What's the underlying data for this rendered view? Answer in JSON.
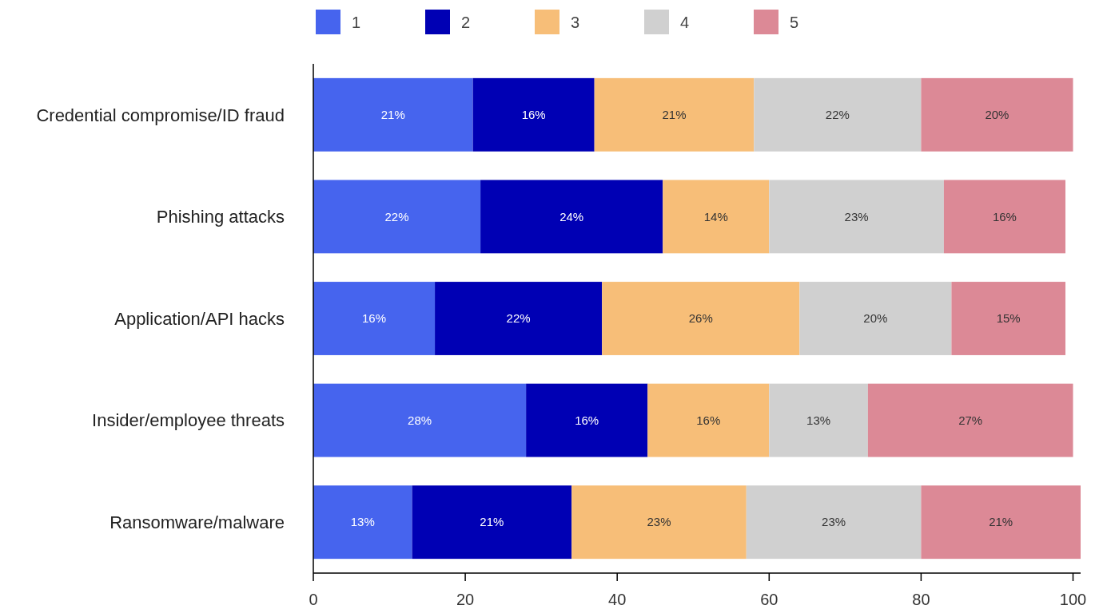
{
  "chart_data": {
    "type": "bar",
    "orientation": "horizontal",
    "stacked": true,
    "categories": [
      "Credential compromise/ID fraud",
      "Phishing attacks",
      "Application/API hacks",
      "Insider/employee threats",
      "Ransomware/malware"
    ],
    "series": [
      {
        "name": "1",
        "color": "#4664ee",
        "values": [
          21,
          22,
          16,
          28,
          13
        ],
        "value_labels": [
          "21%",
          "22%",
          "16%",
          "28%",
          "13%"
        ]
      },
      {
        "name": "2",
        "color": "#0000b4",
        "values": [
          16,
          24,
          22,
          16,
          21
        ],
        "value_labels": [
          "16%",
          "24%",
          "22%",
          "16%",
          "21%"
        ]
      },
      {
        "name": "3",
        "color": "#f7be78",
        "values": [
          21,
          14,
          26,
          16,
          23
        ],
        "value_labels": [
          "21%",
          "14%",
          "26%",
          "16%",
          "23%"
        ]
      },
      {
        "name": "4",
        "color": "#d0d0d0",
        "values": [
          22,
          23,
          20,
          13,
          23
        ],
        "value_labels": [
          "22%",
          "23%",
          "20%",
          "13%",
          "23%"
        ]
      },
      {
        "name": "5",
        "color": "#dc8996",
        "values": [
          20,
          16,
          15,
          27,
          21
        ],
        "value_labels": [
          "20%",
          "16%",
          "15%",
          "27%",
          "21%"
        ]
      }
    ],
    "xlim": [
      0,
      101
    ],
    "xticks": [
      0,
      20,
      40,
      60,
      80,
      100
    ],
    "grid": false,
    "legend": "top"
  }
}
